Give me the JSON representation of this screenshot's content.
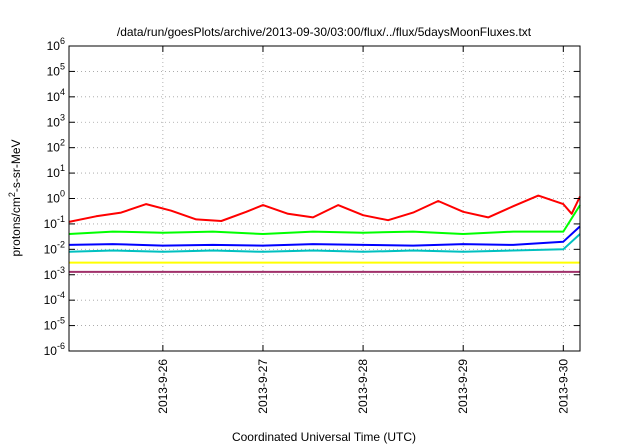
{
  "chart_data": {
    "type": "line",
    "title": "/data/run/goesPlots/archive/2013-09-30/03:00/flux/../flux/5daysMoonFluxes.txt",
    "xlabel": "Coordinated Universal Time (UTC)",
    "ylabel": {
      "base": "protons/cm",
      "sup": "2",
      "rest": "-s-sr-MeV"
    },
    "x_range": [
      "2013-09-25T01:30",
      "2013-09-30T04:00"
    ],
    "x_ticks": [
      {
        "date": "2013-09-26",
        "label": "2013-9-26"
      },
      {
        "date": "2013-09-27",
        "label": "2013-9-27"
      },
      {
        "date": "2013-09-28",
        "label": "2013-9-28"
      },
      {
        "date": "2013-09-29",
        "label": "2013-9-29"
      },
      {
        "date": "2013-09-30",
        "label": "2013-9-30"
      }
    ],
    "y_scale": "log",
    "ylim": [
      1e-06,
      1000000.0
    ],
    "y_ticks": [
      {
        "base": "10",
        "exp": "-6",
        "value": 1e-06
      },
      {
        "base": "10",
        "exp": "-5",
        "value": 1e-05
      },
      {
        "base": "10",
        "exp": "-4",
        "value": 0.0001
      },
      {
        "base": "10",
        "exp": "-3",
        "value": 0.001
      },
      {
        "base": "10",
        "exp": "-2",
        "value": 0.01
      },
      {
        "base": "10",
        "exp": "-1",
        "value": 0.1
      },
      {
        "base": "10",
        "exp": "0",
        "value": 1
      },
      {
        "base": "10",
        "exp": "1",
        "value": 10
      },
      {
        "base": "10",
        "exp": "2",
        "value": 100
      },
      {
        "base": "10",
        "exp": "3",
        "value": 1000
      },
      {
        "base": "10",
        "exp": "4",
        "value": 10000
      },
      {
        "base": "10",
        "exp": "5",
        "value": 100000
      },
      {
        "base": "10",
        "exp": "6",
        "value": 1000000
      }
    ],
    "grid": true,
    "series": [
      {
        "color": "#ff0000",
        "x": [
          "2013-09-25T01:30",
          "2013-09-25T08:00",
          "2013-09-25T14:00",
          "2013-09-25T20:00",
          "2013-09-26T02:00",
          "2013-09-26T08:00",
          "2013-09-26T14:00",
          "2013-09-26T20:00",
          "2013-09-27T00:00",
          "2013-09-27T06:00",
          "2013-09-27T12:00",
          "2013-09-27T18:00",
          "2013-09-28T00:00",
          "2013-09-28T06:00",
          "2013-09-28T12:00",
          "2013-09-28T18:00",
          "2013-09-29T00:00",
          "2013-09-29T06:00",
          "2013-09-29T12:00",
          "2013-09-29T18:00",
          "2013-09-30T00:00",
          "2013-09-30T02:00",
          "2013-09-30T04:00"
        ],
        "values": [
          0.12,
          0.2,
          0.28,
          0.6,
          0.33,
          0.15,
          0.13,
          0.3,
          0.55,
          0.25,
          0.18,
          0.55,
          0.22,
          0.14,
          0.28,
          0.8,
          0.3,
          0.18,
          0.5,
          1.3,
          0.6,
          0.25,
          1.2
        ]
      },
      {
        "color": "#00ff00",
        "x": [
          "2013-09-25T01:30",
          "2013-09-25T12:00",
          "2013-09-26T00:00",
          "2013-09-26T12:00",
          "2013-09-27T00:00",
          "2013-09-27T12:00",
          "2013-09-28T00:00",
          "2013-09-28T12:00",
          "2013-09-29T00:00",
          "2013-09-29T12:00",
          "2013-09-30T00:00",
          "2013-09-30T04:00"
        ],
        "values": [
          0.04,
          0.05,
          0.045,
          0.05,
          0.04,
          0.05,
          0.045,
          0.05,
          0.04,
          0.05,
          0.05,
          0.55
        ]
      },
      {
        "color": "#0000ff",
        "x": [
          "2013-09-25T01:30",
          "2013-09-25T12:00",
          "2013-09-26T00:00",
          "2013-09-26T12:00",
          "2013-09-27T00:00",
          "2013-09-27T12:00",
          "2013-09-28T00:00",
          "2013-09-28T12:00",
          "2013-09-29T00:00",
          "2013-09-29T12:00",
          "2013-09-30T00:00",
          "2013-09-30T04:00"
        ],
        "values": [
          0.015,
          0.016,
          0.014,
          0.015,
          0.014,
          0.016,
          0.015,
          0.014,
          0.016,
          0.015,
          0.02,
          0.08
        ]
      },
      {
        "color": "#00c0c0",
        "x": [
          "2013-09-25T01:30",
          "2013-09-25T12:00",
          "2013-09-26T00:00",
          "2013-09-26T12:00",
          "2013-09-27T00:00",
          "2013-09-27T12:00",
          "2013-09-28T00:00",
          "2013-09-28T12:00",
          "2013-09-29T00:00",
          "2013-09-29T12:00",
          "2013-09-30T00:00",
          "2013-09-30T04:00"
        ],
        "values": [
          0.008,
          0.009,
          0.008,
          0.009,
          0.008,
          0.009,
          0.008,
          0.009,
          0.008,
          0.009,
          0.01,
          0.04
        ]
      },
      {
        "color": "#ffff00",
        "x": [
          "2013-09-25T01:30",
          "2013-09-25T12:00",
          "2013-09-26T00:00",
          "2013-09-26T12:00",
          "2013-09-27T00:00",
          "2013-09-27T12:00",
          "2013-09-28T00:00",
          "2013-09-28T12:00",
          "2013-09-29T00:00",
          "2013-09-29T12:00",
          "2013-09-30T00:00",
          "2013-09-30T04:00"
        ],
        "values": [
          0.003,
          0.003,
          0.003,
          0.003,
          0.003,
          0.003,
          0.003,
          0.003,
          0.003,
          0.003,
          0.003,
          0.003
        ]
      },
      {
        "color": "#a0306a",
        "x": [
          "2013-09-25T01:30",
          "2013-09-25T12:00",
          "2013-09-26T00:00",
          "2013-09-26T12:00",
          "2013-09-27T00:00",
          "2013-09-27T12:00",
          "2013-09-28T00:00",
          "2013-09-28T12:00",
          "2013-09-29T00:00",
          "2013-09-29T12:00",
          "2013-09-30T00:00",
          "2013-09-30T04:00"
        ],
        "values": [
          0.0013,
          0.0013,
          0.0013,
          0.0013,
          0.0013,
          0.0013,
          0.0013,
          0.0013,
          0.0013,
          0.0013,
          0.0013,
          0.0013
        ]
      }
    ]
  }
}
